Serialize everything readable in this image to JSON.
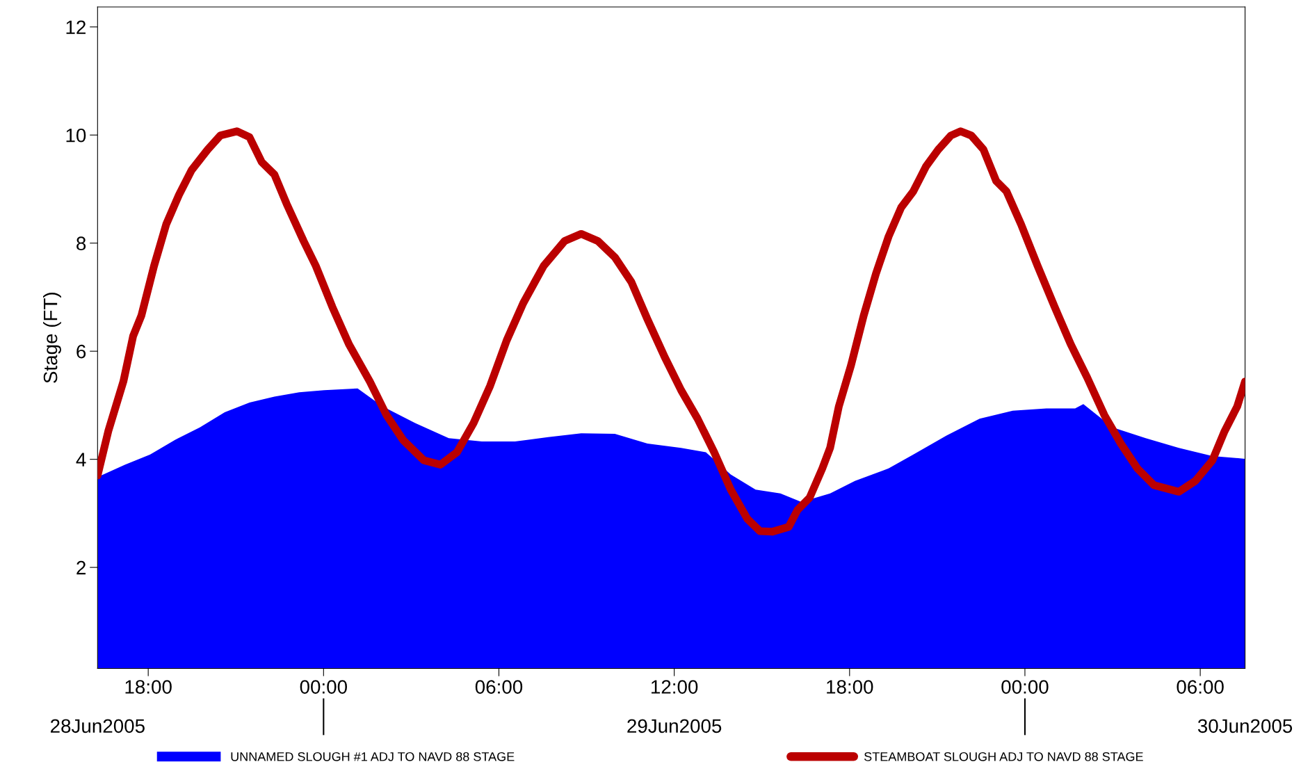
{
  "chart_data": {
    "type": "area",
    "ylabel": "Stage (FT)",
    "legend": "bottom",
    "grid": false,
    "xlim": [
      "2005-06-28T16:16",
      "2005-06-30T07:32"
    ],
    "xticks": [
      {
        "value": "2005-06-28T18:00",
        "label": "18:00"
      },
      {
        "value": "2005-06-29T00:00",
        "label": "00:00"
      },
      {
        "value": "2005-06-29T06:00",
        "label": "06:00"
      },
      {
        "value": "2005-06-29T12:00",
        "label": "12:00"
      },
      {
        "value": "2005-06-29T18:00",
        "label": "18:00"
      },
      {
        "value": "2005-06-30T00:00",
        "label": "00:00"
      },
      {
        "value": "2005-06-30T06:00",
        "label": "06:00"
      }
    ],
    "x2lim": [
      "2005-06-28T16:16",
      "2005-06-30T07:32"
    ],
    "x2ticks": [
      {
        "value": "2005-06-28T16:16",
        "label": "28Jun2005"
      },
      {
        "value": "2005-06-29T00:00",
        "label": null
      },
      {
        "value": "2005-06-29T12:00",
        "label": "29Jun2005"
      },
      {
        "value": "2005-06-30T00:00",
        "label": null
      },
      {
        "value": "2005-06-30T07:32",
        "label": "30Jun2005"
      }
    ],
    "ylim": [
      0.13,
      12.37
    ],
    "yticks": [
      2,
      4,
      6,
      8,
      10,
      12
    ],
    "series": [
      {
        "name": "UNNAMED SLOUGH #1 ADJ TO NAVD 88 STAGE",
        "color": "#0000ff",
        "x": [
          "2005-06-28T16:16",
          "2005-06-28T17:12",
          "2005-06-28T18:04",
          "2005-06-28T18:55",
          "2005-06-28T19:46",
          "2005-06-28T20:37",
          "2005-06-28T21:28",
          "2005-06-28T22:19",
          "2005-06-28T23:10",
          "2005-06-29T00:01",
          "2005-06-29T01:10",
          "2005-06-29T02:01",
          "2005-06-29T03:08",
          "2005-06-29T04:17",
          "2005-06-29T05:25",
          "2005-06-29T06:33",
          "2005-06-29T07:41",
          "2005-06-29T08:49",
          "2005-06-29T09:58",
          "2005-06-29T11:05",
          "2005-06-29T12:14",
          "2005-06-29T13:05",
          "2005-06-29T13:56",
          "2005-06-29T14:47",
          "2005-06-29T15:38",
          "2005-06-29T16:21",
          "2005-06-29T17:20",
          "2005-06-29T18:11",
          "2005-06-29T19:20",
          "2005-06-29T20:11",
          "2005-06-29T21:19",
          "2005-06-29T22:27",
          "2005-06-29T23:35",
          "2005-06-30T00:44",
          "2005-06-30T01:43",
          "2005-06-30T02:00",
          "2005-06-30T03:00",
          "2005-06-30T04:08",
          "2005-06-30T05:16",
          "2005-06-30T06:25",
          "2005-06-30T07:32"
        ],
        "values": [
          3.67,
          3.9,
          4.09,
          4.36,
          4.59,
          4.87,
          5.05,
          5.16,
          5.24,
          5.28,
          5.31,
          4.98,
          4.67,
          4.39,
          4.33,
          4.33,
          4.41,
          4.48,
          4.47,
          4.29,
          4.21,
          4.13,
          3.72,
          3.44,
          3.37,
          3.21,
          3.37,
          3.6,
          3.83,
          4.09,
          4.44,
          4.75,
          4.9,
          4.94,
          4.94,
          5.02,
          4.59,
          4.39,
          4.21,
          4.06,
          4.01
        ]
      },
      {
        "name": "STEAMBOAT SLOUGH ADJ TO NAVD 88 STAGE",
        "type": "line",
        "color": "#bb0000",
        "line_style": "solid",
        "marker": "none",
        "x": [
          "2005-06-28T16:16",
          "2005-06-28T16:38",
          "2005-06-28T17:09",
          "2005-06-28T17:29",
          "2005-06-28T17:46",
          "2005-06-28T18:12",
          "2005-06-28T18:37",
          "2005-06-28T19:03",
          "2005-06-28T19:29",
          "2005-06-28T20:02",
          "2005-06-28T20:28",
          "2005-06-28T21:02",
          "2005-06-28T21:28",
          "2005-06-28T21:53",
          "2005-06-28T22:19",
          "2005-06-28T22:44",
          "2005-06-28T23:19",
          "2005-06-28T23:44",
          "2005-06-29T00:18",
          "2005-06-29T00:52",
          "2005-06-29T01:35",
          "2005-06-29T02:09",
          "2005-06-29T02:43",
          "2005-06-29T03:26",
          "2005-06-29T04:00",
          "2005-06-29T04:34",
          "2005-06-29T05:08",
          "2005-06-29T05:42",
          "2005-06-29T06:16",
          "2005-06-29T06:50",
          "2005-06-29T07:32",
          "2005-06-29T08:15",
          "2005-06-29T08:49",
          "2005-06-29T09:23",
          "2005-06-29T09:58",
          "2005-06-29T10:32",
          "2005-06-29T11:05",
          "2005-06-29T11:40",
          "2005-06-29T12:14",
          "2005-06-29T12:48",
          "2005-06-29T13:22",
          "2005-06-29T13:56",
          "2005-06-29T14:30",
          "2005-06-29T14:56",
          "2005-06-29T15:21",
          "2005-06-29T15:55",
          "2005-06-29T16:13",
          "2005-06-29T16:38",
          "2005-06-29T17:04",
          "2005-06-29T17:20",
          "2005-06-29T17:38",
          "2005-06-29T18:03",
          "2005-06-29T18:29",
          "2005-06-29T18:54",
          "2005-06-29T19:20",
          "2005-06-29T19:46",
          "2005-06-29T20:11",
          "2005-06-29T20:37",
          "2005-06-29T21:02",
          "2005-06-29T21:28",
          "2005-06-29T21:48",
          "2005-06-29T22:10",
          "2005-06-29T22:35",
          "2005-06-29T23:01",
          "2005-06-29T23:22",
          "2005-06-29T23:52",
          "2005-06-30T00:26",
          "2005-06-30T01:01",
          "2005-06-30T01:34",
          "2005-06-30T02:08",
          "2005-06-30T02:43",
          "2005-06-30T03:17",
          "2005-06-30T03:51",
          "2005-06-30T04:25",
          "2005-06-30T05:16",
          "2005-06-30T05:50",
          "2005-06-30T06:25",
          "2005-06-30T06:50",
          "2005-06-30T07:16",
          "2005-06-30T07:32"
        ],
        "values": [
          3.7,
          4.52,
          5.44,
          6.28,
          6.66,
          7.58,
          8.35,
          8.89,
          9.35,
          9.73,
          9.99,
          10.07,
          9.96,
          9.5,
          9.27,
          8.73,
          8.04,
          7.58,
          6.82,
          6.13,
          5.44,
          4.82,
          4.36,
          3.98,
          3.9,
          4.13,
          4.67,
          5.36,
          6.2,
          6.89,
          7.58,
          8.04,
          8.17,
          8.04,
          7.74,
          7.28,
          6.59,
          5.9,
          5.28,
          4.75,
          4.13,
          3.44,
          2.9,
          2.67,
          2.66,
          2.75,
          3.06,
          3.29,
          3.83,
          4.21,
          4.98,
          5.74,
          6.66,
          7.43,
          8.12,
          8.66,
          8.96,
          9.42,
          9.73,
          9.99,
          10.07,
          9.99,
          9.73,
          9.15,
          8.96,
          8.35,
          7.58,
          6.82,
          6.13,
          5.51,
          4.82,
          4.29,
          3.83,
          3.52,
          3.4,
          3.6,
          3.98,
          4.52,
          4.98,
          5.44
        ]
      }
    ]
  }
}
